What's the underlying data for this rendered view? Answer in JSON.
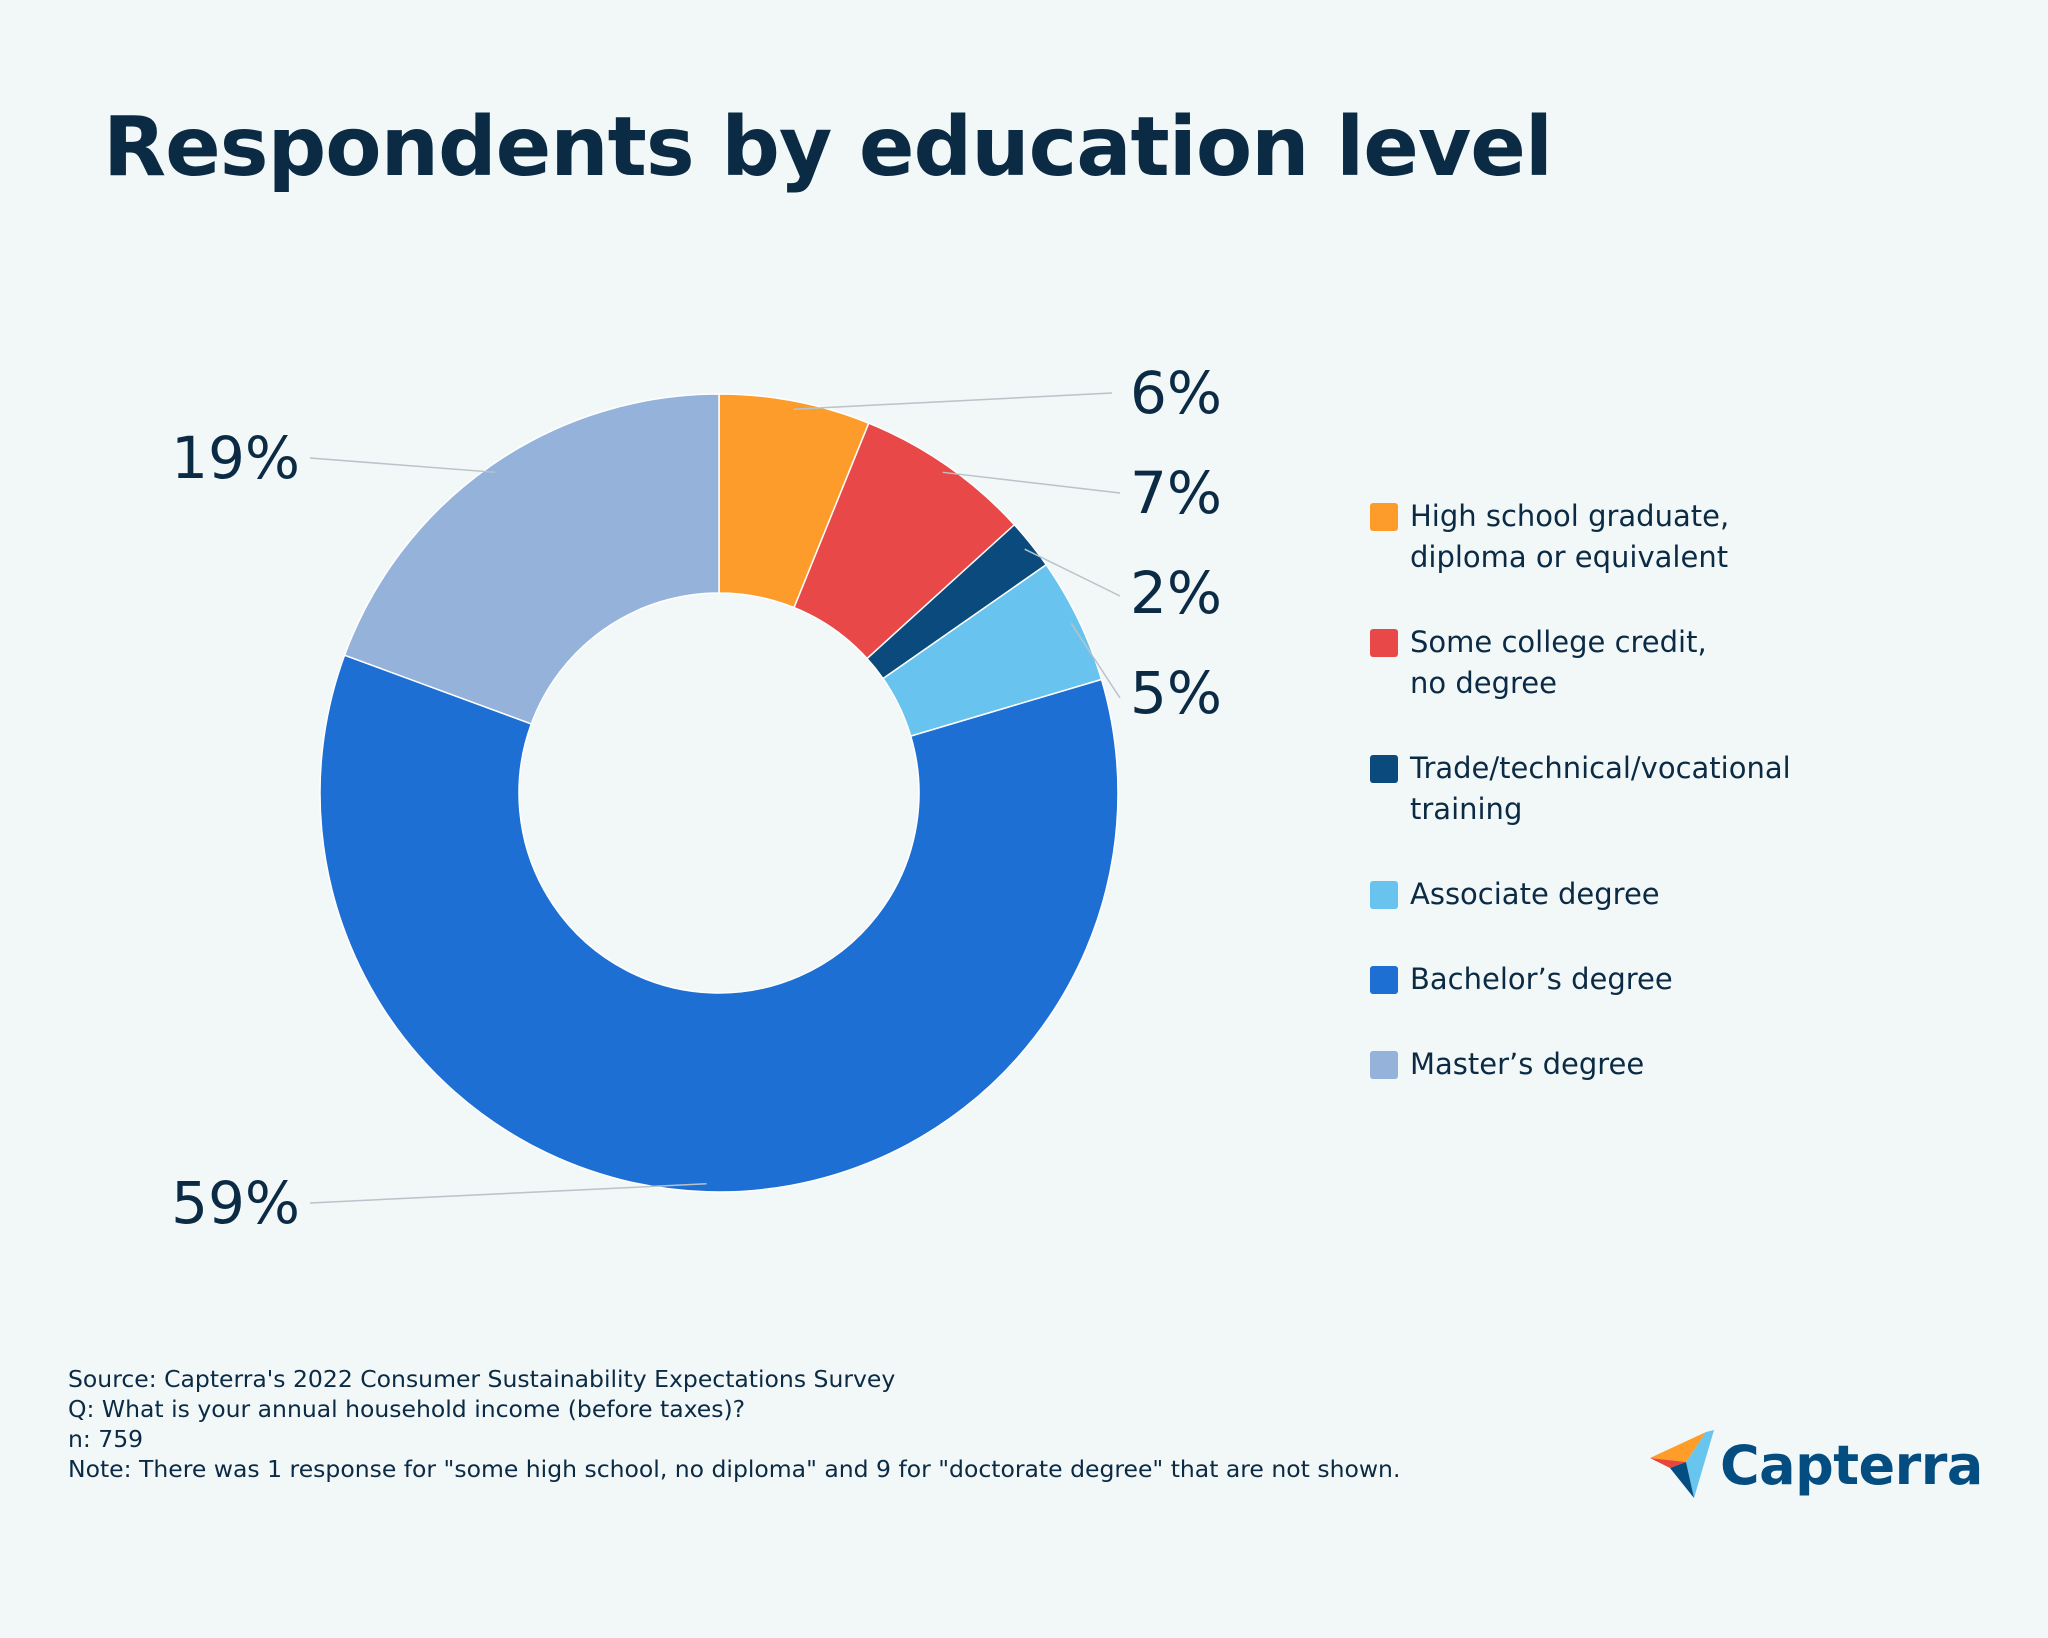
{
  "chart_data": {
    "type": "pie",
    "title": "Respondents by education level",
    "categories": [
      "High school graduate, diploma or equivalent",
      "Some college credit, no degree",
      "Trade/technical/vocational training",
      "Associate degree",
      "Bachelor’s degree",
      "Master’s degree"
    ],
    "values": [
      6,
      7,
      2,
      5,
      59,
      19
    ],
    "labels": [
      "6%",
      "7%",
      "2%",
      "5%",
      "59%",
      "19%"
    ],
    "colors": [
      "#fd9c2b",
      "#e84848",
      "#0a4a7c",
      "#68c4ee",
      "#1d6fd3",
      "#95b3da"
    ],
    "donut": true,
    "legend_position": "right"
  },
  "footer": {
    "source": "Source: Capterra's 2022 Consumer Sustainability Expectations Survey",
    "question": "Q: What is your annual household income (before taxes)?",
    "n": "n: 759",
    "note": "Note: There was 1 response for \"some high school, no diploma\" and 9 for \"doctorate degree\" that are not shown."
  },
  "logo": {
    "text": "Capterra",
    "icon": "capterra-logo-icon"
  }
}
